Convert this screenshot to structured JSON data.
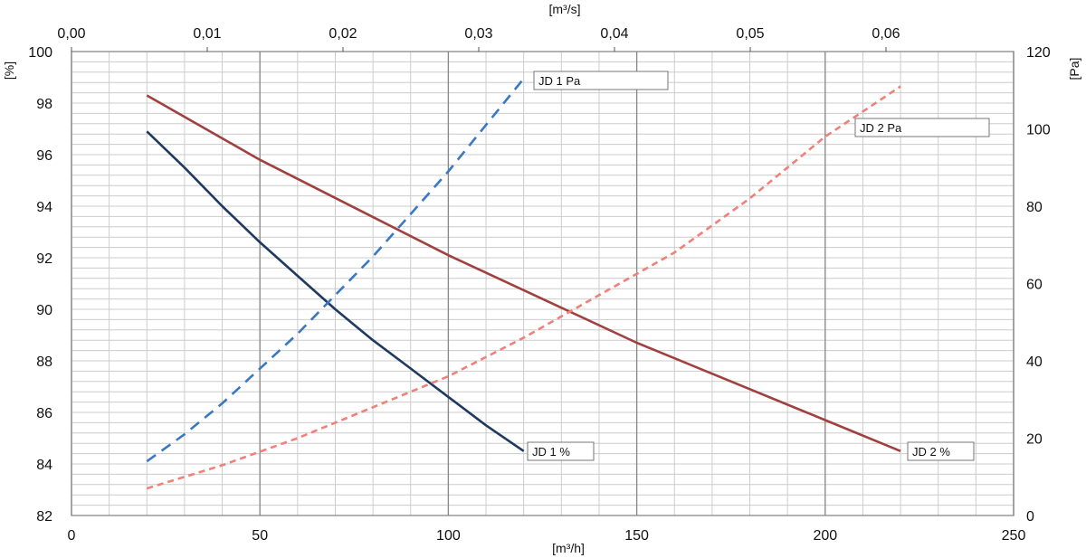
{
  "chart_data": {
    "type": "line",
    "title": "",
    "xlabel": "[m³/h]",
    "xlabel_top": "[m³/s]",
    "ylabel_left": "[%]",
    "ylabel_right": "[Pa]",
    "xlim": [
      0,
      250
    ],
    "ylim_left": [
      82,
      100
    ],
    "ylim_right": [
      0,
      120
    ],
    "xlim_top": [
      0,
      0.0694
    ],
    "x_ticks": [
      "0",
      "50",
      "100",
      "150",
      "200",
      "250"
    ],
    "x_tick_values": [
      0,
      50,
      100,
      150,
      200,
      250
    ],
    "top_ticks": [
      "0,00",
      "0,01",
      "0,02",
      "0,03",
      "0,04",
      "0,05",
      "0,06"
    ],
    "top_tick_values": [
      0,
      0.01,
      0.02,
      0.03,
      0.04,
      0.05,
      0.06
    ],
    "y_left_ticks": [
      "82",
      "84",
      "86",
      "88",
      "90",
      "92",
      "94",
      "96",
      "98",
      "100"
    ],
    "y_left_tick_values": [
      82,
      84,
      86,
      88,
      90,
      92,
      94,
      96,
      98,
      100
    ],
    "y_right_ticks": [
      "0",
      "20",
      "40",
      "60",
      "80",
      "100",
      "120"
    ],
    "y_right_tick_values": [
      0,
      20,
      40,
      60,
      80,
      100,
      120
    ],
    "grid": true,
    "series": [
      {
        "name": "JD 1 %",
        "axis": "left",
        "color": "#1f3a5f",
        "dash": "solid",
        "x": [
          20,
          30,
          40,
          50,
          60,
          70,
          80,
          90,
          100,
          110,
          120
        ],
        "y": [
          96.9,
          95.5,
          94.0,
          92.6,
          91.3,
          90.0,
          88.8,
          87.7,
          86.6,
          85.5,
          84.5
        ]
      },
      {
        "name": "JD 2 %",
        "axis": "left",
        "color": "#a0413f",
        "dash": "solid",
        "x": [
          20,
          50,
          100,
          150,
          200,
          220
        ],
        "y": [
          98.3,
          95.8,
          92.1,
          88.7,
          85.7,
          84.5
        ]
      },
      {
        "name": "JD 1 Pa",
        "axis": "right",
        "color": "#3b78c3",
        "dash": "long",
        "x": [
          20,
          30,
          40,
          50,
          60,
          70,
          80,
          90,
          100,
          110,
          120
        ],
        "y": [
          14,
          21,
          29,
          38,
          47,
          57,
          67,
          78,
          89,
          101,
          113
        ]
      },
      {
        "name": "JD 2 Pa",
        "axis": "right",
        "color": "#f08078",
        "dash": "short",
        "x": [
          20,
          40,
          60,
          80,
          100,
          120,
          140,
          160,
          180,
          200,
          220
        ],
        "y": [
          7,
          13,
          20,
          28,
          36,
          46,
          57,
          68,
          82,
          98,
          111
        ]
      }
    ]
  }
}
